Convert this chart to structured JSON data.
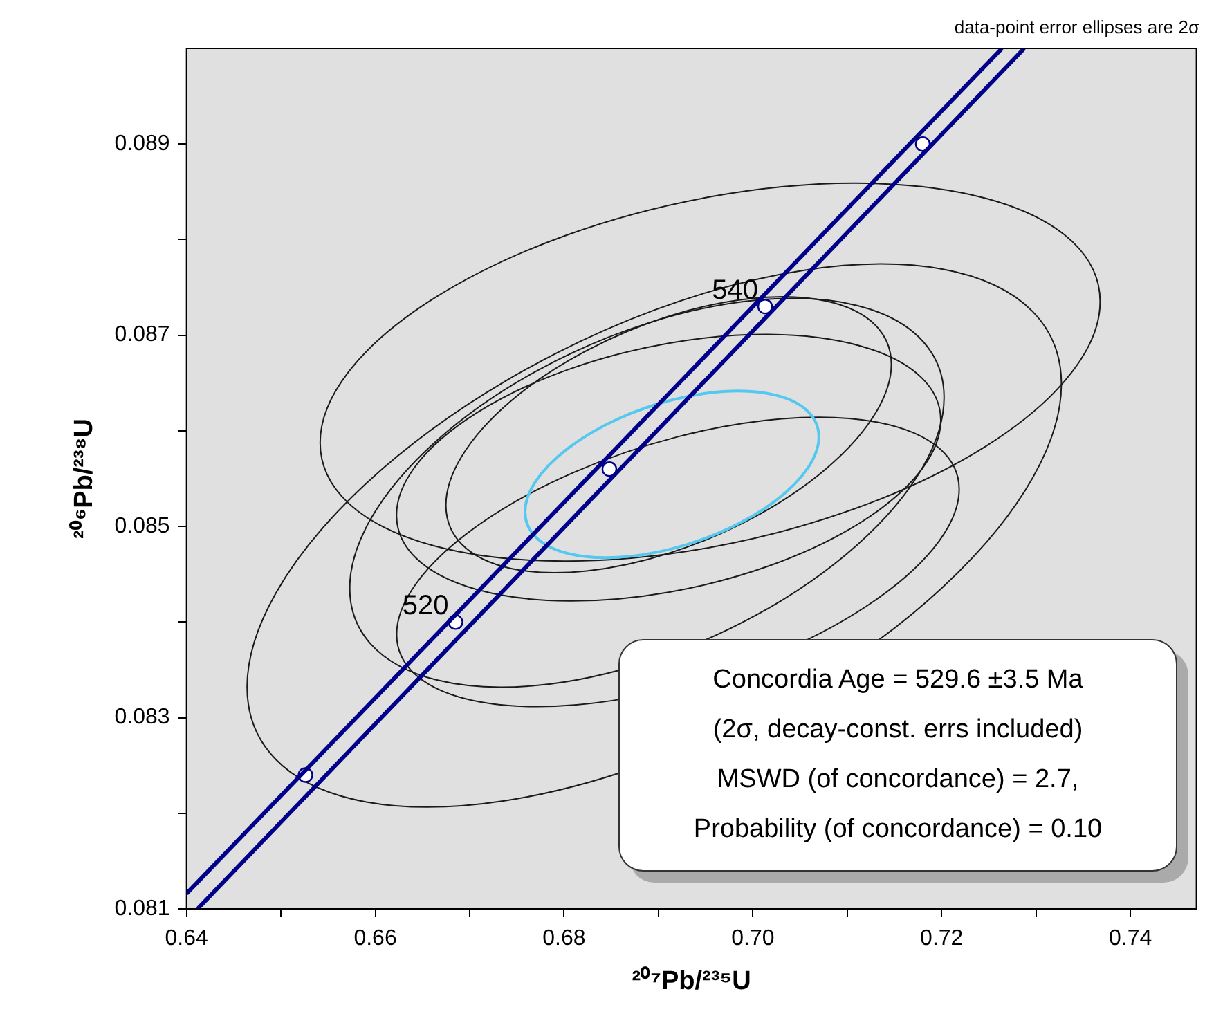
{
  "chart_data": {
    "type": "line",
    "xlabel": "²⁰⁷Pb/²³⁵U",
    "ylabel": "²⁰⁶Pb/²³⁸U",
    "xlim": [
      0.64,
      0.747
    ],
    "ylim": [
      0.081,
      0.09
    ],
    "xticks": [
      0.64,
      {
        "value": 0.65,
        "label": null
      },
      0.66,
      {
        "value": 0.67,
        "label": null
      },
      0.68,
      {
        "value": 0.69,
        "label": null
      },
      {
        "value": 0.7,
        "label": "0.70"
      },
      {
        "value": 0.71,
        "label": null
      },
      0.72,
      {
        "value": 0.73,
        "label": null
      },
      0.74
    ],
    "yticks": [
      0.081,
      {
        "value": 0.082,
        "label": null
      },
      0.083,
      {
        "value": 0.084,
        "label": null
      },
      0.085,
      {
        "value": 0.086,
        "label": null
      },
      0.087,
      {
        "value": 0.088,
        "label": null
      },
      0.089
    ],
    "grid": false,
    "legend": false,
    "series": [
      {
        "color": "#00008b",
        "x": [
          0.64,
          0.7264
        ],
        "values": [
          0.08116,
          0.09
        ]
      },
      {
        "color": "#00008b",
        "x": [
          0.64117,
          0.72876
        ],
        "values": [
          0.081,
          0.09
        ]
      },
      {
        "type": "scatter",
        "marker": "circle",
        "color": "#00008b",
        "x": [
          0.6526,
          0.6685,
          0.6848,
          0.7013,
          0.718
        ],
        "values": [
          0.0824,
          0.084,
          0.0856,
          0.0873,
          0.089
        ]
      }
    ],
    "annotations": [
      "data-point  error ellipses are 2σ",
      "Concordia  Age = 529.6 ±3.5 Ma",
      "(2σ,  decay-const.  errs included)",
      "MSWD  (of concordance) = 2.7,",
      "Probability  (of concordance) = 0.10",
      {
        "text": "520",
        "x": 0.6685,
        "y": 0.084
      },
      {
        "text": "540",
        "x": 0.7013,
        "y": 0.0873
      }
    ]
  }
}
